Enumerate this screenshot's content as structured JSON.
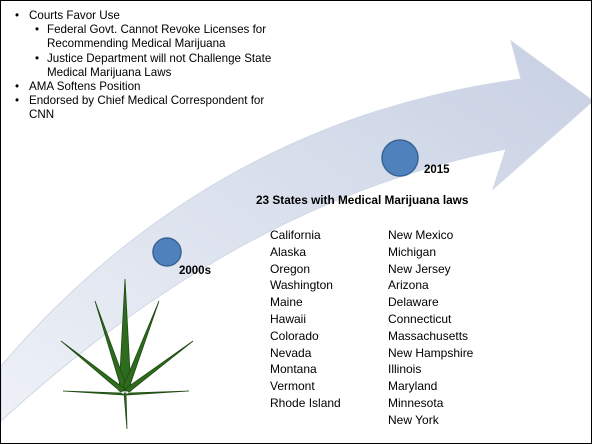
{
  "bullets": {
    "l1_a": "Courts Favor Use",
    "l2_a": "Federal Govt. Cannot Revoke Licenses for Recommending Medical Marijuana",
    "l2_b": "Justice Department will not Challenge State Medical Marijuana Laws",
    "l1_b": "AMA Softens Position",
    "l1_c": "Endorsed by Chief Medical Correspondent for CNN"
  },
  "timeline": {
    "label_2000s": "2000s",
    "label_2015": "2015"
  },
  "heading": "23 States with Medical Marijuana laws",
  "states_left": [
    "California",
    "Alaska",
    "Oregon",
    "Washington",
    "Maine",
    "Hawaii",
    "Colorado",
    "Nevada",
    "Montana",
    "Vermont",
    "Rhode Island"
  ],
  "states_right": [
    "New Mexico",
    "Michigan",
    "New Jersey",
    "Arizona",
    "Delaware",
    "Connecticut",
    "Massachusetts",
    "New Hampshire",
    "Illinois",
    "Maryland",
    "Minnesota",
    "New York"
  ],
  "colors": {
    "arrow": "#d5dcea",
    "dot": "#4f81bd",
    "dot_stroke": "#3a6495",
    "leaf": "#2f6b1e"
  },
  "icons": {
    "arrow": "curved-arrow-icon",
    "leaf": "cannabis-leaf-icon"
  }
}
